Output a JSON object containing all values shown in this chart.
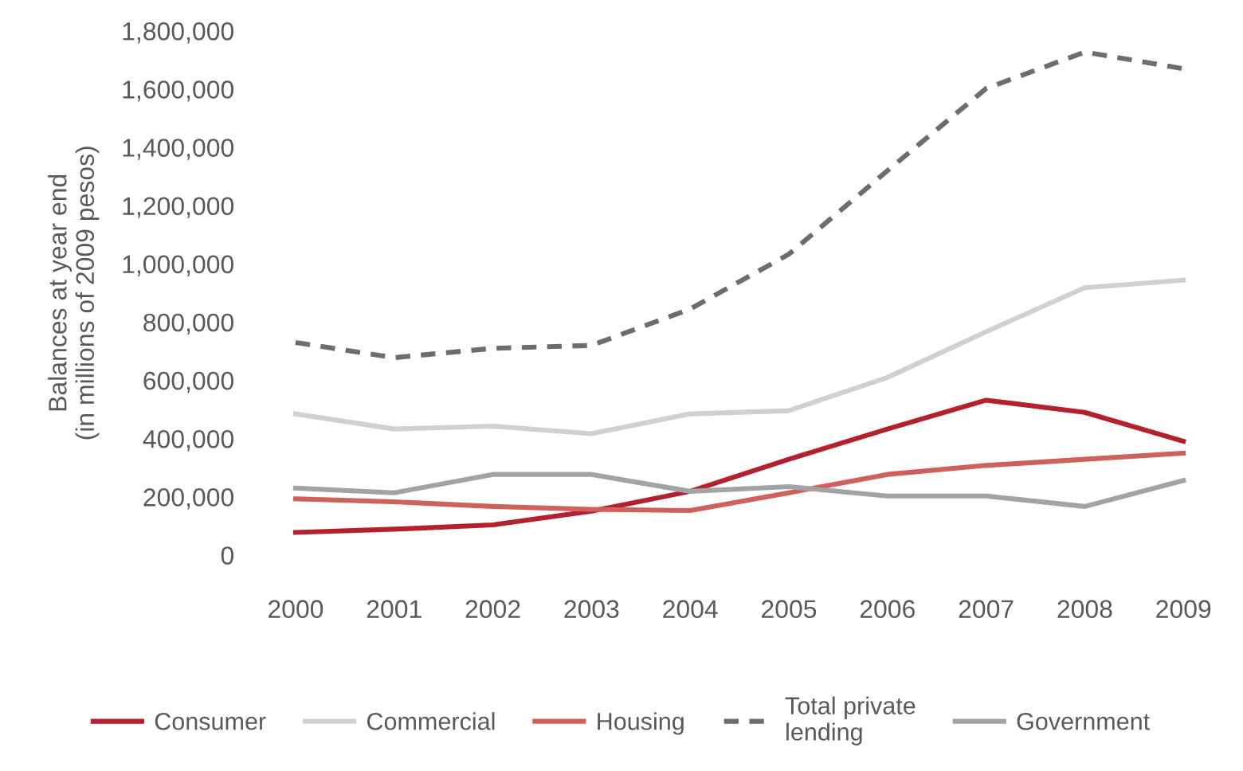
{
  "chart_data": {
    "type": "line",
    "ylabel": "Balances at year end\n(in millions of 2009 pesos)",
    "categories": [
      "2000",
      "2001",
      "2002",
      "2003",
      "2004",
      "2005",
      "2006",
      "2007",
      "2008",
      "2009"
    ],
    "series": [
      {
        "name": "Consumer",
        "color": "#b5202e",
        "values": [
          78000,
          89000,
          104000,
          151000,
          219000,
          329000,
          433000,
          532000,
          490000,
          391000
        ]
      },
      {
        "name": "Commercial",
        "color": "#d0d0d0",
        "values": [
          485000,
          433000,
          443000,
          417000,
          485000,
          496000,
          610000,
          767000,
          918000,
          944000
        ]
      },
      {
        "name": "Housing",
        "color": "#d0605a",
        "values": [
          193000,
          183000,
          167000,
          157000,
          153000,
          214000,
          277000,
          308000,
          329000,
          350000
        ]
      },
      {
        "name": "Total private\nlending",
        "color": "#6d6d6d",
        "line_style": "dashed",
        "values": [
          730000,
          678000,
          710000,
          720000,
          845000,
          1033000,
          1320000,
          1602000,
          1727000,
          1670000
        ]
      },
      {
        "name": "Government",
        "color": "#a3a3a6",
        "values": [
          230000,
          214000,
          277000,
          277000,
          219000,
          235000,
          203000,
          203000,
          167000,
          256000
        ]
      }
    ],
    "ylim": [
      0,
      1800000
    ],
    "yticks": [
      {
        "value": 0,
        "label": "0"
      },
      {
        "value": 200000,
        "label": "200,000"
      },
      {
        "value": 400000,
        "label": "400,000"
      },
      {
        "value": 600000,
        "label": "600,000"
      },
      {
        "value": 800000,
        "label": "800,000"
      },
      {
        "value": 1000000,
        "label": "1,000,000"
      },
      {
        "value": 1200000,
        "label": "1,200,000"
      },
      {
        "value": 1400000,
        "label": "1,400,000"
      },
      {
        "value": 1600000,
        "label": "1,600,000"
      },
      {
        "value": 1800000,
        "label": "1,800,000"
      }
    ],
    "grid": false,
    "legend": "bottom"
  }
}
